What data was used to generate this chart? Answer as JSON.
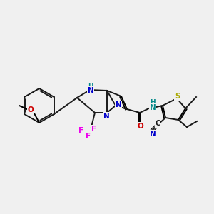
{
  "background_color": "#f0f0f0",
  "bond_color": "#1a1a1a",
  "atom_colors": {
    "N": "#0000cc",
    "O": "#cc0000",
    "F": "#ee00ee",
    "S": "#aaaa00",
    "NH": "#008888",
    "C": "#1a1a1a"
  },
  "figsize": [
    3.0,
    3.0
  ],
  "dpi": 100
}
